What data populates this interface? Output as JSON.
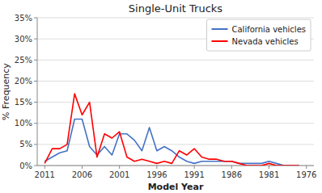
{
  "chart_data": {
    "type": "line",
    "title": "Single-Unit Trucks",
    "x_label": "Model Year",
    "y_label": "% Frequency",
    "x": [
      2011,
      2010,
      2009,
      2008,
      2007,
      2006,
      2005,
      2004,
      2003,
      2002,
      2001,
      2000,
      1999,
      1998,
      1997,
      1996,
      1995,
      1994,
      1993,
      1992,
      1991,
      1990,
      1989,
      1988,
      1987,
      1986,
      1985,
      1984,
      1983,
      1982,
      1981,
      1980,
      1979,
      1978,
      1977
    ],
    "series": [
      {
        "name": "California vehicles",
        "color": "#4472c4",
        "values": [
          0.01,
          0.02,
          0.03,
          0.035,
          0.11,
          0.11,
          0.045,
          0.025,
          0.045,
          0.025,
          0.075,
          0.075,
          0.06,
          0.035,
          0.09,
          0.035,
          0.045,
          0.035,
          0.02,
          0.01,
          0.005,
          0.01,
          0.01,
          0.01,
          0.01,
          0.01,
          0.005,
          0.005,
          0.005,
          0.005,
          0.01,
          0.005,
          0.0,
          0.0,
          0.0
        ]
      },
      {
        "name": "Nevada vehicles",
        "color": "#ff0000",
        "values": [
          0.005,
          0.04,
          0.04,
          0.05,
          0.17,
          0.12,
          0.15,
          0.02,
          0.075,
          0.065,
          0.08,
          0.02,
          0.01,
          0.015,
          0.01,
          0.005,
          0.01,
          0.005,
          0.035,
          0.025,
          0.04,
          0.02,
          0.015,
          0.015,
          0.01,
          0.01,
          0.005,
          0.0,
          0.0,
          0.0,
          0.005,
          0.0,
          0.0,
          0.0,
          0.0
        ]
      }
    ],
    "xlim": [
      2012,
      1975
    ],
    "xticks": [
      2011,
      2006,
      2001,
      1996,
      1991,
      1986,
      1981,
      1976
    ],
    "ylim": [
      0,
      0.35
    ],
    "yticks": [
      {
        "value": 0.0,
        "label": "0%"
      },
      {
        "value": 0.05,
        "label": "5%"
      },
      {
        "value": 0.1,
        "label": "10%"
      },
      {
        "value": 0.15,
        "label": "15%"
      },
      {
        "value": 0.2,
        "label": "20%"
      },
      {
        "value": 0.25,
        "label": "25%"
      },
      {
        "value": 0.3,
        "label": "30%"
      },
      {
        "value": 0.35,
        "label": "35%"
      }
    ],
    "grid": true,
    "legend": "upper right"
  }
}
